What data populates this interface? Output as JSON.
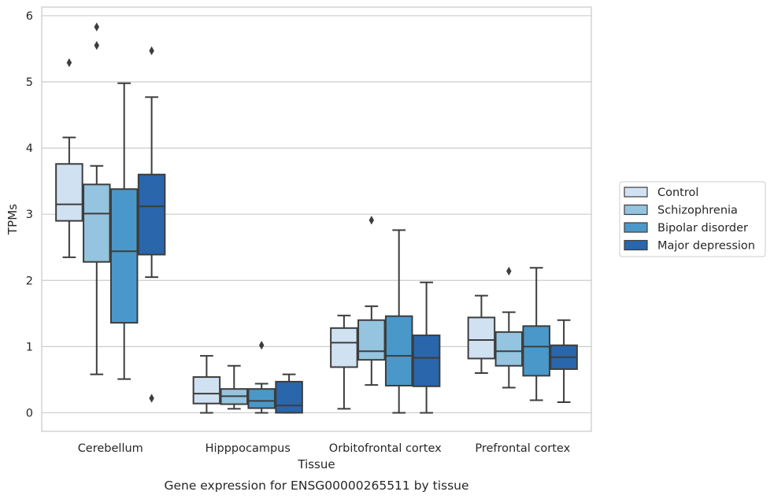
{
  "chart_data": {
    "type": "box",
    "caption": "Gene expression for ENSG00000265511 by tissue",
    "xlabel": "Tissue",
    "ylabel": "TPMs",
    "ylim": [
      -0.28,
      6.13
    ],
    "yticks": [
      0,
      1,
      2,
      3,
      4,
      5,
      6
    ],
    "grid": "horizontal",
    "legend_position": "right",
    "categories": [
      "Cerebellum",
      "Hipppocampus",
      "Orbitofrontal cortex",
      "Prefrontal cortex"
    ],
    "series": [
      {
        "name": "Control",
        "color": "#d0e1f2",
        "boxes": [
          {
            "whislo": 2.35,
            "q1": 2.9,
            "med": 3.15,
            "q3": 3.76,
            "whishi": 4.16,
            "fliers": [
              5.29
            ]
          },
          {
            "whislo": 0.0,
            "q1": 0.14,
            "med": 0.29,
            "q3": 0.54,
            "whishi": 0.86,
            "fliers": []
          },
          {
            "whislo": 0.06,
            "q1": 0.69,
            "med": 1.06,
            "q3": 1.28,
            "whishi": 1.47,
            "fliers": []
          },
          {
            "whislo": 0.6,
            "q1": 0.82,
            "med": 1.1,
            "q3": 1.44,
            "whishi": 1.77,
            "fliers": []
          }
        ]
      },
      {
        "name": "Schizophrenia",
        "color": "#94c4df",
        "boxes": [
          {
            "whislo": 0.58,
            "q1": 2.28,
            "med": 3.01,
            "q3": 3.45,
            "whishi": 3.73,
            "fliers": [
              5.55,
              5.83
            ]
          },
          {
            "whislo": 0.06,
            "q1": 0.13,
            "med": 0.25,
            "q3": 0.36,
            "whishi": 0.71,
            "fliers": []
          },
          {
            "whislo": 0.42,
            "q1": 0.8,
            "med": 0.93,
            "q3": 1.4,
            "whishi": 1.61,
            "fliers": [
              2.91
            ]
          },
          {
            "whislo": 0.38,
            "q1": 0.71,
            "med": 0.93,
            "q3": 1.22,
            "whishi": 1.52,
            "fliers": [
              2.14
            ]
          }
        ]
      },
      {
        "name": "Bipolar disorder",
        "color": "#4a98c9",
        "boxes": [
          {
            "whislo": 0.51,
            "q1": 1.36,
            "med": 2.44,
            "q3": 3.38,
            "whishi": 4.98,
            "fliers": []
          },
          {
            "whislo": 0.0,
            "q1": 0.07,
            "med": 0.18,
            "q3": 0.36,
            "whishi": 0.44,
            "fliers": [
              1.02
            ]
          },
          {
            "whislo": 0.0,
            "q1": 0.41,
            "med": 0.86,
            "q3": 1.46,
            "whishi": 2.76,
            "fliers": []
          },
          {
            "whislo": 0.19,
            "q1": 0.56,
            "med": 1.0,
            "q3": 1.31,
            "whishi": 2.19,
            "fliers": []
          }
        ]
      },
      {
        "name": "Major depression",
        "color": "#2966ac",
        "boxes": [
          {
            "whislo": 2.05,
            "q1": 2.39,
            "med": 3.12,
            "q3": 3.6,
            "whishi": 4.77,
            "fliers": [
              0.22,
              5.47
            ]
          },
          {
            "whislo": 0.0,
            "q1": 0.0,
            "med": 0.11,
            "q3": 0.47,
            "whishi": 0.58,
            "fliers": []
          },
          {
            "whislo": 0.0,
            "q1": 0.4,
            "med": 0.83,
            "q3": 1.17,
            "whishi": 1.97,
            "fliers": []
          },
          {
            "whislo": 0.16,
            "q1": 0.66,
            "med": 0.84,
            "q3": 1.02,
            "whishi": 1.4,
            "fliers": []
          }
        ]
      }
    ]
  }
}
